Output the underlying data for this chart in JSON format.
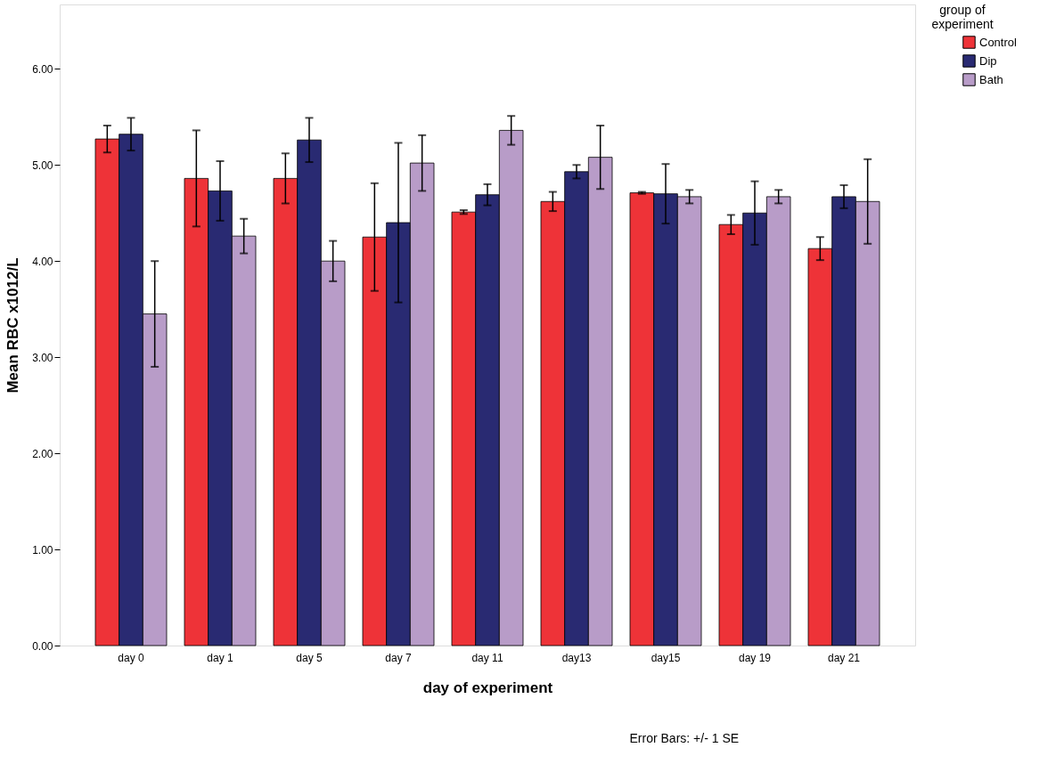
{
  "chart_data": {
    "type": "bar",
    "xlabel": "day of experiment",
    "ylabel": "Mean RBC x1012/L",
    "legend_title": "group of experiment",
    "categories": [
      "day 0",
      "day 1",
      "day 5",
      "day 7",
      "day 11",
      "day13",
      "day15",
      "day 19",
      "day 21"
    ],
    "series": [
      {
        "name": "Control",
        "color": "#ee3338",
        "values": [
          5.27,
          4.86,
          4.86,
          4.25,
          4.51,
          4.62,
          4.71,
          4.38,
          4.13
        ],
        "errors": [
          0.14,
          0.5,
          0.26,
          0.56,
          0.02,
          0.1,
          0.01,
          0.1,
          0.12
        ]
      },
      {
        "name": "Dip",
        "color": "#292a72",
        "values": [
          5.32,
          4.73,
          5.26,
          4.4,
          4.69,
          4.93,
          4.7,
          4.5,
          4.67
        ],
        "errors": [
          0.17,
          0.31,
          0.23,
          0.83,
          0.11,
          0.07,
          0.31,
          0.33,
          0.12
        ]
      },
      {
        "name": "Bath",
        "color": "#b89cc8",
        "values": [
          3.45,
          4.26,
          4.0,
          5.02,
          5.36,
          5.08,
          4.67,
          4.67,
          4.62
        ],
        "errors": [
          0.55,
          0.18,
          0.21,
          0.29,
          0.15,
          0.33,
          0.07,
          0.07,
          0.44
        ]
      }
    ],
    "ylim": [
      0,
      6.67
    ],
    "yticks": [
      {
        "value": 0,
        "label": "0.00"
      },
      {
        "value": 1,
        "label": "1.00"
      },
      {
        "value": 2,
        "label": "2.00"
      },
      {
        "value": 3,
        "label": "3.00"
      },
      {
        "value": 4,
        "label": "4.00"
      },
      {
        "value": 5,
        "label": "5.00"
      },
      {
        "value": 6,
        "label": "6.00"
      }
    ],
    "grid": false,
    "legend": "top right",
    "annotations": [
      "Error Bars: +/- 1 SE"
    ]
  }
}
